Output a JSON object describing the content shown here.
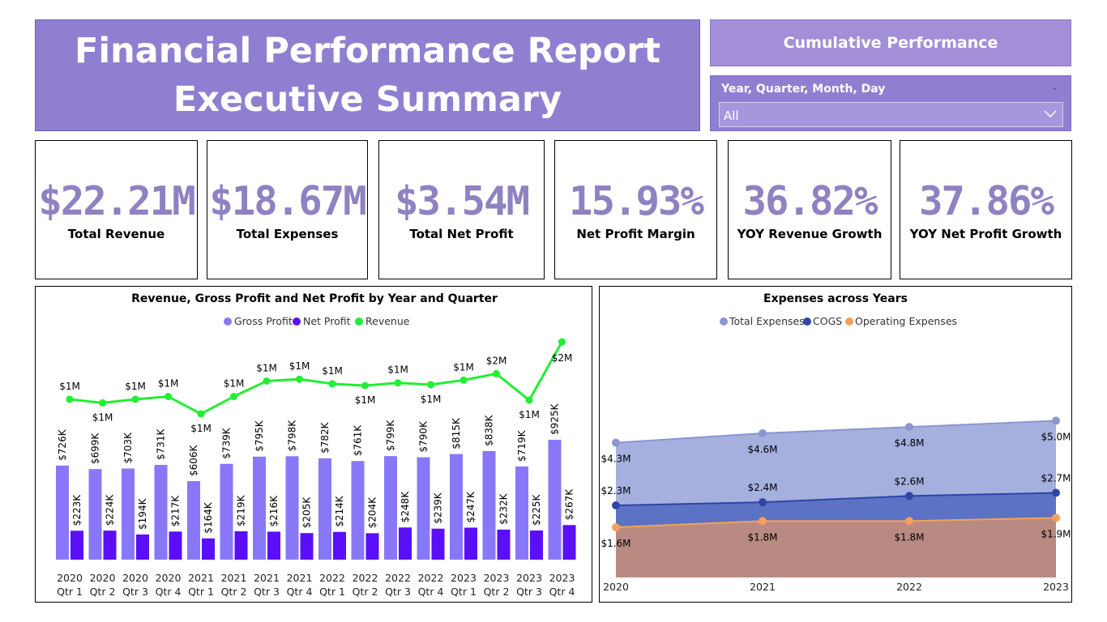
{
  "header": {
    "title_line1": "Financial Performance Report",
    "title_line2": "Executive Summary",
    "cumulative_label": "Cumulative Performance",
    "slicer_label": "Year, Quarter, Month, Day",
    "slicer_value": "All"
  },
  "kpis": [
    {
      "value": "$22.21M",
      "label": "Total Revenue"
    },
    {
      "value": "$18.67M",
      "label": "Total Expenses"
    },
    {
      "value": "$3.54M",
      "label": "Total Net Profit"
    },
    {
      "value": "15.93%",
      "label": "Net Profit Margin"
    },
    {
      "value": "36.82%",
      "label": "YOY Revenue Growth"
    },
    {
      "value": "37.86%",
      "label": "YOY Net Profit Growth"
    }
  ],
  "chart_data": [
    {
      "type": "bar",
      "title": "Revenue, Gross Profit and Net Profit by Year and Quarter",
      "legend_position": "top-center",
      "grid": false,
      "categories": [
        [
          "2020",
          "Qtr 1"
        ],
        [
          "2020",
          "Qtr 2"
        ],
        [
          "2020",
          "Qtr 3"
        ],
        [
          "2020",
          "Qtr 4"
        ],
        [
          "2021",
          "Qtr 1"
        ],
        [
          "2021",
          "Qtr 2"
        ],
        [
          "2021",
          "Qtr 3"
        ],
        [
          "2021",
          "Qtr 4"
        ],
        [
          "2022",
          "Qtr 1"
        ],
        [
          "2022",
          "Qtr 2"
        ],
        [
          "2022",
          "Qtr 3"
        ],
        [
          "2022",
          "Qtr 4"
        ],
        [
          "2023",
          "Qtr 1"
        ],
        [
          "2023",
          "Qtr 2"
        ],
        [
          "2023",
          "Qtr 3"
        ],
        [
          "2023",
          "Qtr 4"
        ]
      ],
      "series": [
        {
          "name": "Gross Profit",
          "kind": "bar",
          "color": "#8878f8",
          "values": [
            726,
            699,
            703,
            731,
            606,
            739,
            795,
            798,
            782,
            761,
            799,
            790,
            815,
            838,
            719,
            925
          ],
          "labels": [
            "$726K",
            "$699K",
            "$703K",
            "$731K",
            "$606K",
            "$739K",
            "$795K",
            "$798K",
            "$782K",
            "$761K",
            "$799K",
            "$790K",
            "$815K",
            "$838K",
            "$719K",
            "$925K"
          ]
        },
        {
          "name": "Net Profit",
          "kind": "bar",
          "color": "#5b0ef8",
          "values": [
            223,
            224,
            194,
            217,
            164,
            219,
            216,
            205,
            214,
            204,
            248,
            239,
            247,
            232,
            225,
            267
          ],
          "labels": [
            "$223K",
            "$224K",
            "$194K",
            "$217K",
            "$164K",
            "$219K",
            "$216K",
            "$205K",
            "$214K",
            "$204K",
            "$248K",
            "$239K",
            "$247K",
            "$232K",
            "$225K",
            "$267K"
          ]
        },
        {
          "name": "Revenue",
          "kind": "line",
          "color": "#22ee33",
          "values": [
            1.27,
            1.23,
            1.27,
            1.3,
            1.11,
            1.3,
            1.47,
            1.49,
            1.44,
            1.42,
            1.45,
            1.43,
            1.48,
            1.55,
            1.26,
            1.9
          ],
          "labels": [
            "$1M",
            "$1M",
            "$1M",
            "$1M",
            "$1M",
            "$1M",
            "$1M",
            "$1M",
            "$1M",
            "$1M",
            "$1M",
            "$1M",
            "$1M",
            "$2M",
            "$1M",
            "$2M"
          ]
        }
      ]
    },
    {
      "type": "area",
      "title": "Expenses across Years",
      "legend_position": "top-center",
      "grid": false,
      "x": [
        "2020",
        "2021",
        "2022",
        "2023"
      ],
      "series": [
        {
          "name": "Total Expenses",
          "color": "#8a96d0",
          "fill": "#a6b0de",
          "values": [
            4.3,
            4.6,
            4.8,
            5.0
          ],
          "labels": [
            "$4.3M",
            "$4.6M",
            "$4.8M",
            "$5.0M"
          ]
        },
        {
          "name": "COGS",
          "color": "#2f45a8",
          "fill": "#5c72c4",
          "values": [
            2.3,
            2.4,
            2.6,
            2.7
          ],
          "labels": [
            "$2.3M",
            "$2.4M",
            "$2.6M",
            "$2.7M"
          ]
        },
        {
          "name": "Operating Expenses",
          "color": "#f5a05a",
          "fill": "#b88a82",
          "values": [
            1.6,
            1.8,
            1.8,
            1.9
          ],
          "labels": [
            "$1.6M",
            "$1.8M",
            "$1.8M",
            "$1.9M"
          ]
        }
      ]
    }
  ]
}
